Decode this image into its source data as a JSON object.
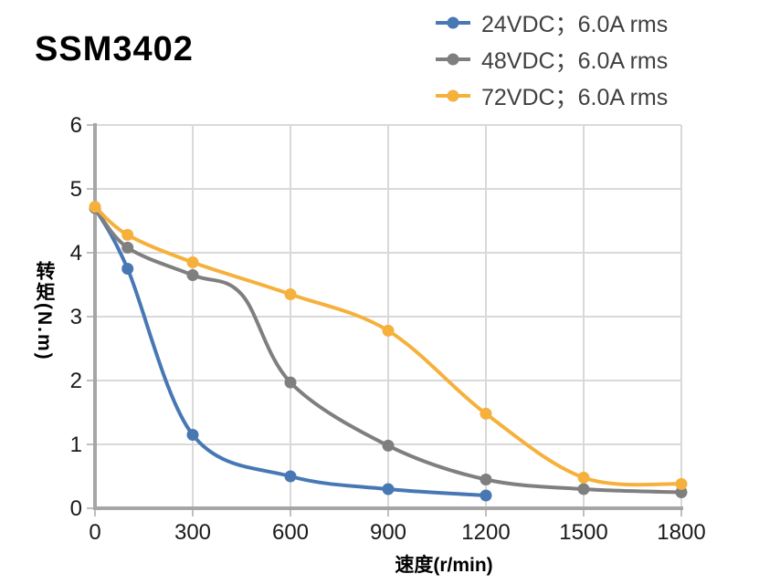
{
  "title": "SSM3402",
  "colors": {
    "background": "#ffffff",
    "axis": "#a6a6a6",
    "gridline": "#d9d9d9",
    "tick_mark": "#bfbfbf",
    "tick_label": "#1a1a1a",
    "legend_text": "#404040",
    "title_text": "#000000"
  },
  "legend": {
    "position": "top-right",
    "marker_style": "line-with-dot"
  },
  "chart_data": {
    "type": "line",
    "title": "SSM3402",
    "xlabel": "速度(r/min)",
    "ylabel": "转矩(N.m)",
    "xlim": [
      0,
      1800
    ],
    "ylim": [
      0,
      6
    ],
    "x_ticks": [
      0,
      300,
      600,
      900,
      1200,
      1500,
      1800
    ],
    "y_ticks": [
      0,
      1,
      2,
      3,
      4,
      5,
      6
    ],
    "grid": true,
    "smooth_lines": true,
    "legend_position": "top-right",
    "series": [
      {
        "name": "24VDC；6.0A rms",
        "color": "#4878B4",
        "x": [
          0,
          100,
          300,
          600,
          900,
          1200
        ],
        "values": [
          4.7,
          3.75,
          1.15,
          0.5,
          0.3,
          0.2
        ]
      },
      {
        "name": "48VDC；6.0A rms",
        "color": "#7F7F7F",
        "x": [
          0,
          100,
          300,
          600,
          900,
          1200,
          1500,
          1800
        ],
        "values": [
          4.7,
          4.08,
          3.65,
          1.97,
          0.98,
          0.45,
          0.3,
          0.25
        ],
        "curve_hint_points": [
          {
            "x": 450,
            "y": 3.35
          }
        ]
      },
      {
        "name": "72VDC；6.0A rms",
        "color": "#F5B13C",
        "x": [
          0,
          100,
          300,
          600,
          900,
          1200,
          1500,
          1800
        ],
        "values": [
          4.72,
          4.28,
          3.85,
          3.35,
          2.78,
          1.48,
          0.48,
          0.38
        ]
      }
    ]
  }
}
